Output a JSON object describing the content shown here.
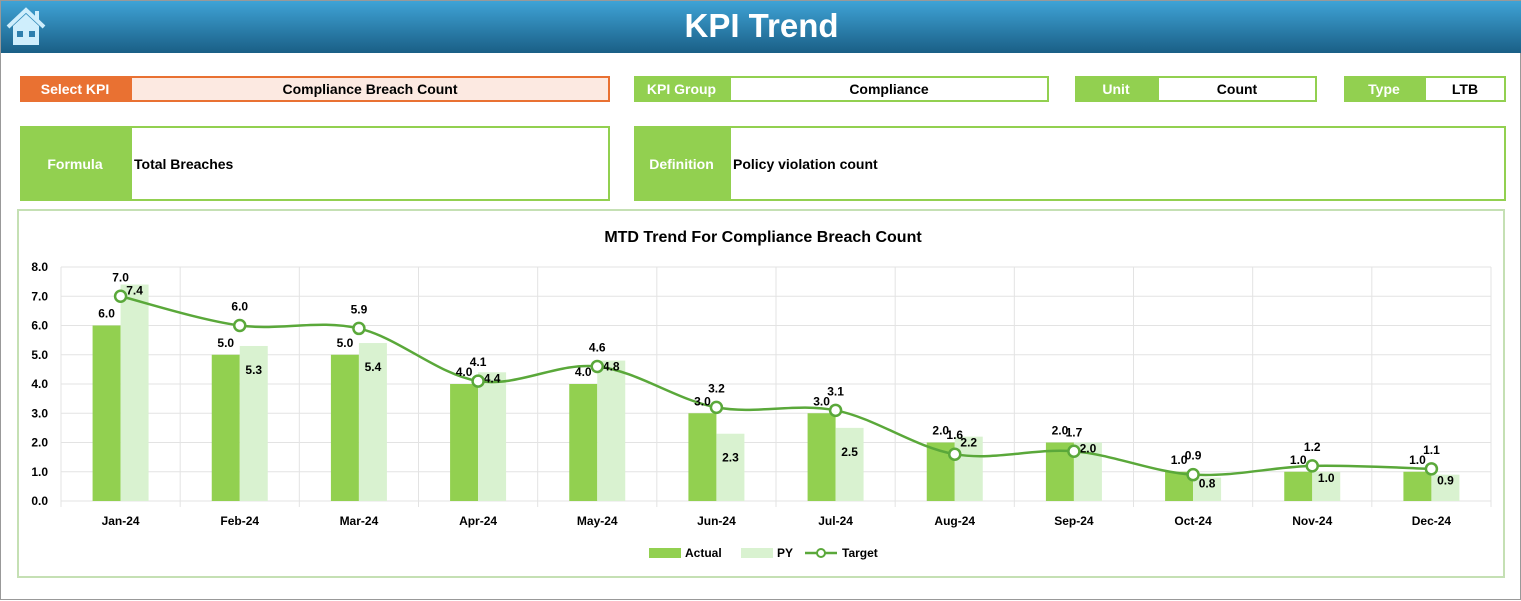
{
  "header": {
    "title": "KPI Trend",
    "home_icon": "home-icon"
  },
  "fields": {
    "select_kpi": {
      "label": "Select KPI",
      "value": "Compliance Breach Count"
    },
    "kpi_group": {
      "label": "KPI Group",
      "value": "Compliance"
    },
    "unit": {
      "label": "Unit",
      "value": "Count"
    },
    "type": {
      "label": "Type",
      "value": "LTB"
    },
    "formula": {
      "label": "Formula",
      "value": "Total Breaches"
    },
    "definition": {
      "label": "Definition",
      "value": "Policy violation count"
    }
  },
  "colors": {
    "actual": "#92d050",
    "py": "#d9f2d0",
    "target": "#5aa83a",
    "accent": "#e97132"
  },
  "chart_data": {
    "type": "bar",
    "title": "MTD Trend For Compliance Breach Count",
    "categories": [
      "Jan-24",
      "Feb-24",
      "Mar-24",
      "Apr-24",
      "May-24",
      "Jun-24",
      "Jul-24",
      "Aug-24",
      "Sep-24",
      "Oct-24",
      "Nov-24",
      "Dec-24"
    ],
    "ylim": [
      0,
      8
    ],
    "yticks": [
      "0.0",
      "1.0",
      "2.0",
      "3.0",
      "4.0",
      "5.0",
      "6.0",
      "7.0",
      "8.0"
    ],
    "grid": true,
    "legend": "bottom",
    "series": [
      {
        "name": "Actual",
        "type": "bar",
        "values": [
          6.0,
          5.0,
          5.0,
          4.0,
          4.0,
          3.0,
          3.0,
          2.0,
          2.0,
          1.0,
          1.0,
          1.0
        ]
      },
      {
        "name": "PY",
        "type": "bar",
        "values": [
          7.4,
          5.3,
          5.4,
          4.4,
          4.8,
          2.3,
          2.5,
          2.2,
          2.0,
          0.8,
          1.0,
          0.9
        ]
      },
      {
        "name": "Target",
        "type": "line",
        "values": [
          7.0,
          6.0,
          5.9,
          4.1,
          4.6,
          3.2,
          3.1,
          1.6,
          1.7,
          0.9,
          1.2,
          1.1
        ]
      }
    ]
  }
}
